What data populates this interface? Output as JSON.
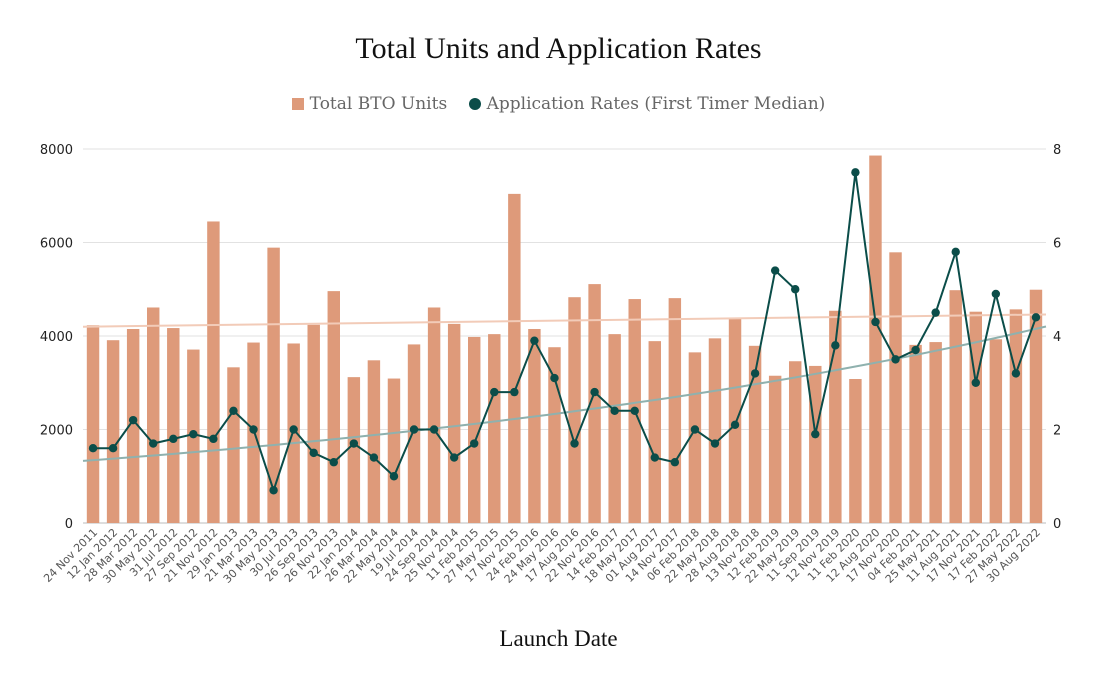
{
  "chart_data": {
    "type": "bar+line",
    "title": "Total Units and Application Rates",
    "xlabel": "Launch Date",
    "ylabel_left": "",
    "ylabel_right": "",
    "ylim_left": [
      0,
      8000
    ],
    "ylim_right": [
      0,
      8
    ],
    "yticks_left": [
      "0",
      "2000",
      "4000",
      "6000",
      "8000"
    ],
    "yticks_right": [
      "0",
      "2",
      "4",
      "6",
      "8"
    ],
    "grid": true,
    "legend_position": "top",
    "colors": {
      "bars": "#DE9A7A",
      "line": "#0B4D49",
      "bar_trend": "#F2CBB8",
      "line_trend": "#8FB1AE"
    },
    "categories": [
      "24 Nov 2011",
      "12 Jan 2012",
      "28 Mar 2012",
      "30 May 2012",
      "31 Jul 2012",
      "27 Sep 2012",
      "21 Nov 2012",
      "29 Jan 2013",
      "21 Mar 2013",
      "30 May 2013",
      "30 Jul 2013",
      "26 Sep 2013",
      "26 Nov 2013",
      "22 Jan 2014",
      "26 Mar 2014",
      "22 May 2014",
      "19 Jul 2014",
      "24 Sep 2014",
      "25 Nov 2014",
      "11 Feb 2015",
      "27 May 2015",
      "17 Nov 2015",
      "24 Feb 2016",
      "24 May 2016",
      "17 Aug 2016",
      "22 Nov 2016",
      "14 Feb 2017",
      "18 May 2017",
      "01 Aug 2017",
      "14 Nov 2017",
      "06 Feb 2018",
      "22 May 2018",
      "28 Aug 2018",
      "13 Nov 2018",
      "12 Feb 2019",
      "22 May 2019",
      "11 Sep 2019",
      "12 Nov 2019",
      "11 Feb 2020",
      "12 Aug 2020",
      "17 Nov 2020",
      "04 Feb 2021",
      "25 May 2021",
      "11 Aug 2021",
      "17 Nov 2021",
      "17 Feb 2022",
      "27 May 2022",
      "30 Aug 2022"
    ],
    "series": [
      {
        "name": "Total BTO Units",
        "type": "bar",
        "axis": "left",
        "values": [
          4230,
          3910,
          4150,
          4610,
          4170,
          3710,
          6450,
          3330,
          3860,
          5890,
          3840,
          4240,
          4960,
          3120,
          3480,
          3090,
          3820,
          4610,
          4260,
          3980,
          4040,
          7040,
          4150,
          3760,
          4830,
          5110,
          4040,
          4790,
          3890,
          4810,
          3650,
          3950,
          4370,
          3790,
          3150,
          3460,
          3360,
          4540,
          3080,
          7860,
          5790,
          3810,
          3870,
          4980,
          4520,
          3930,
          4570,
          4990
        ]
      },
      {
        "name": "Application Rates (First Timer Median)",
        "type": "line",
        "axis": "right",
        "values": [
          1.6,
          1.6,
          2.2,
          1.7,
          1.8,
          1.9,
          1.8,
          2.4,
          2.0,
          0.7,
          2.0,
          1.5,
          1.3,
          1.7,
          1.4,
          1.0,
          2.0,
          2.0,
          1.4,
          1.7,
          2.8,
          2.8,
          3.9,
          3.1,
          1.7,
          2.8,
          2.4,
          2.4,
          1.4,
          1.3,
          2.0,
          1.7,
          2.1,
          3.2,
          5.4,
          5.0,
          1.9,
          3.8,
          7.5,
          4.3,
          3.5,
          3.7,
          4.5,
          5.8,
          3.0,
          4.9,
          3.2,
          4.4
        ]
      }
    ]
  }
}
